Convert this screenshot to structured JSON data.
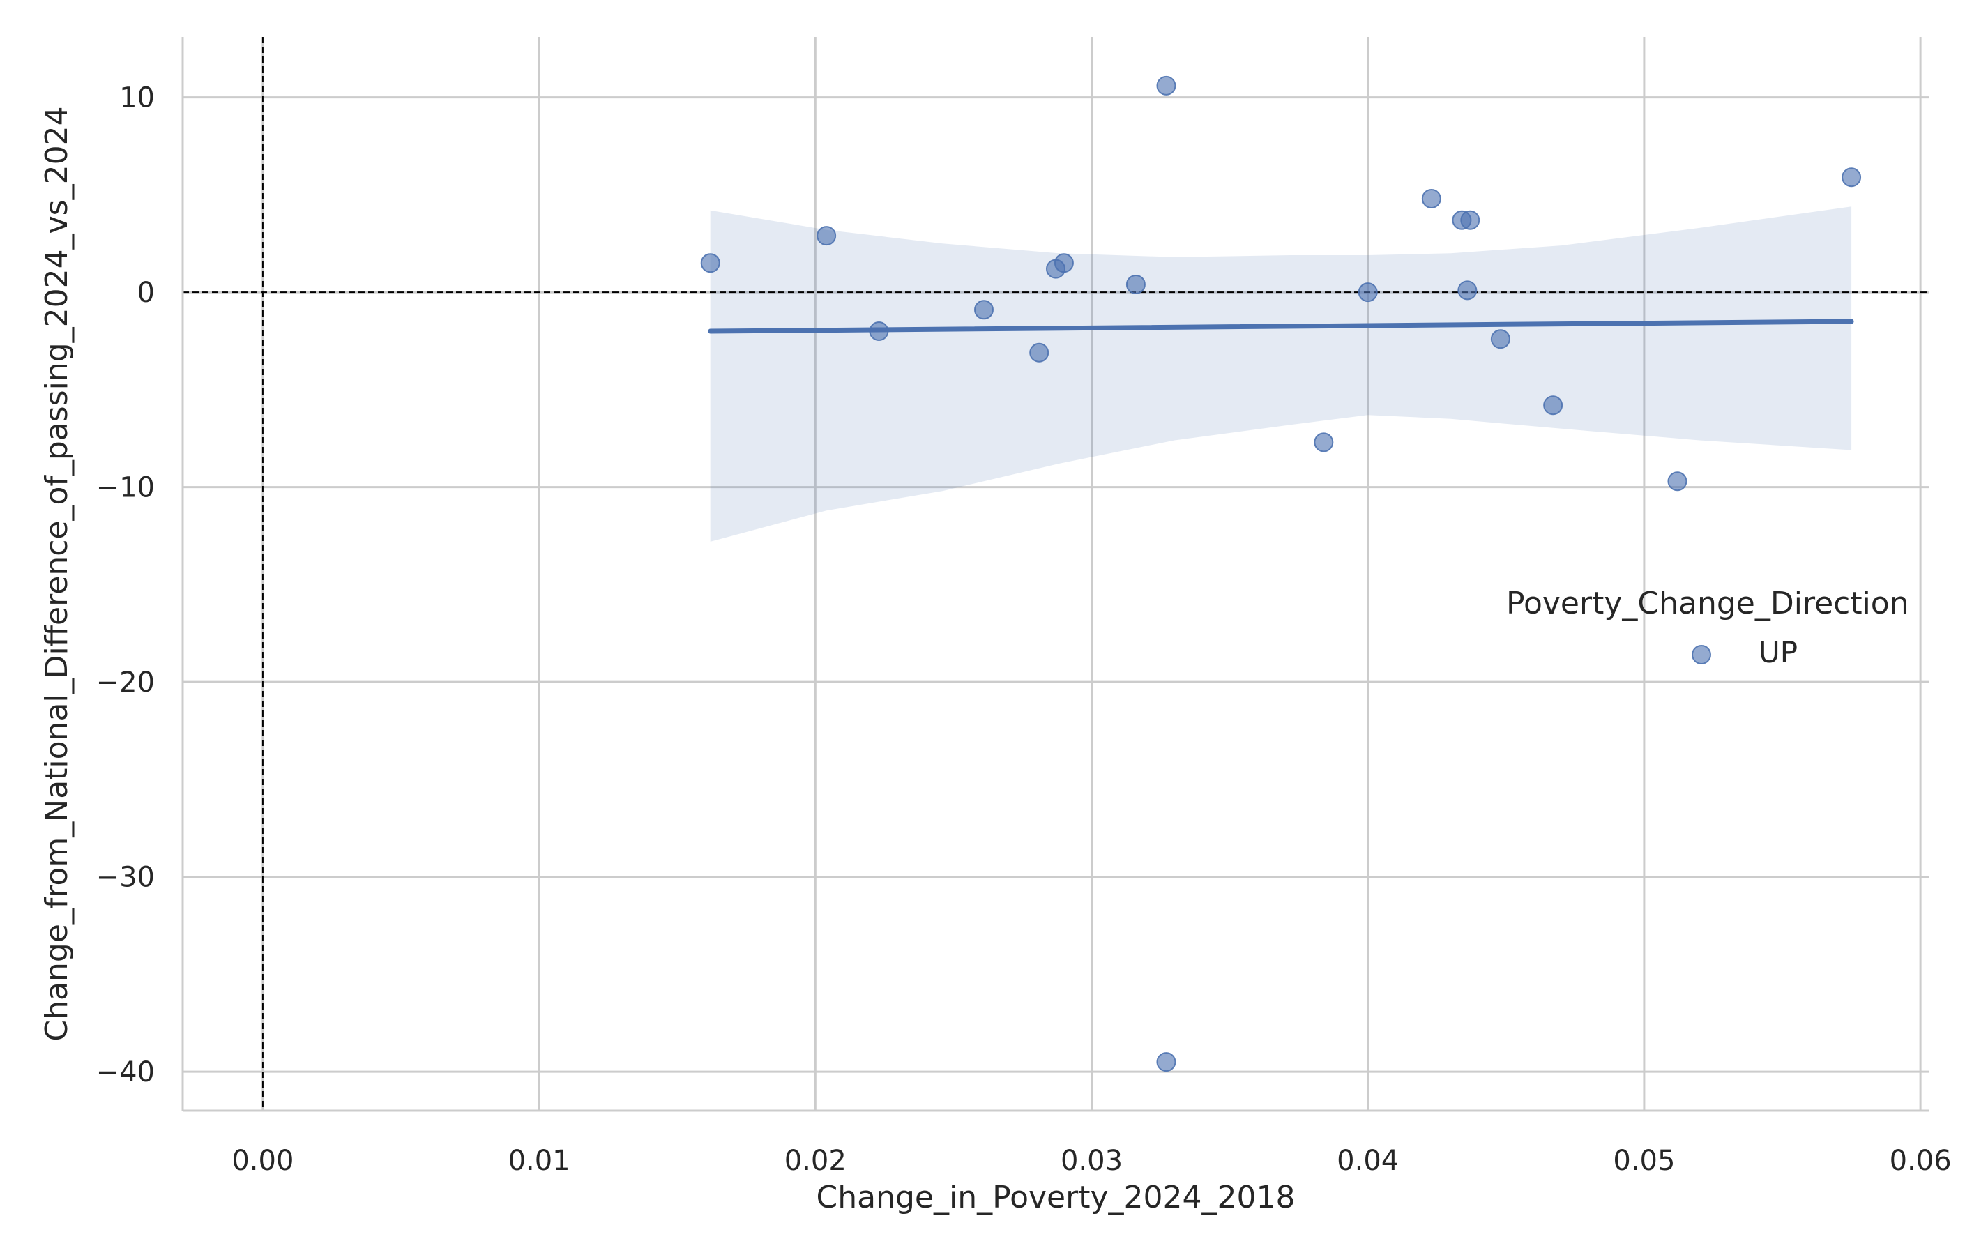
{
  "chart_data": {
    "type": "scatter",
    "title": "",
    "xlabel": "Change_in_Poverty_2024_2018",
    "ylabel": "Change_from_National_Difference_of_passing_2024_vs_2024",
    "xlim": [
      -0.0029,
      0.0603
    ],
    "ylim": [
      -42.0,
      13.1
    ],
    "x_ticks": [
      0.0,
      0.01,
      0.02,
      0.03,
      0.04,
      0.05,
      0.06
    ],
    "x_tick_labels": [
      "0.00",
      "0.01",
      "0.02",
      "0.03",
      "0.04",
      "0.05",
      "0.06"
    ],
    "y_ticks": [
      10,
      0,
      -10,
      -20,
      -30,
      -40
    ],
    "y_tick_labels": [
      "10",
      "0",
      "−10",
      "−20",
      "−30",
      "−40"
    ],
    "grid": true,
    "reference_lines": {
      "x": 0,
      "y": 0,
      "style": "dashed"
    },
    "legend": {
      "title": "Poverty_Change_Direction",
      "placement": "center-right"
    },
    "series": [
      {
        "name": "UP",
        "color": "#4c72b0",
        "points": [
          {
            "x": 0.0162,
            "y": 1.5
          },
          {
            "x": 0.0204,
            "y": 2.9
          },
          {
            "x": 0.0223,
            "y": -2.0
          },
          {
            "x": 0.0261,
            "y": -0.9
          },
          {
            "x": 0.0281,
            "y": -3.1
          },
          {
            "x": 0.0287,
            "y": 1.2
          },
          {
            "x": 0.029,
            "y": 1.5
          },
          {
            "x": 0.0316,
            "y": 0.4
          },
          {
            "x": 0.0327,
            "y": 10.6
          },
          {
            "x": 0.0327,
            "y": -39.5
          },
          {
            "x": 0.0384,
            "y": -7.7
          },
          {
            "x": 0.04,
            "y": 0.0
          },
          {
            "x": 0.0423,
            "y": 4.8
          },
          {
            "x": 0.0434,
            "y": 3.7
          },
          {
            "x": 0.0436,
            "y": 0.1
          },
          {
            "x": 0.0437,
            "y": 3.7
          },
          {
            "x": 0.0448,
            "y": -2.4
          },
          {
            "x": 0.0467,
            "y": -5.8
          },
          {
            "x": 0.0512,
            "y": -9.7
          },
          {
            "x": 0.0575,
            "y": 5.9
          }
        ]
      }
    ],
    "regression": {
      "color": "#4c72b0",
      "x_range": [
        0.0162,
        0.0575
      ],
      "y_range": [
        -2.0,
        -1.5
      ],
      "ci_band": [
        {
          "x": 0.0162,
          "upper": 4.2,
          "lower": -12.8
        },
        {
          "x": 0.0204,
          "upper": 3.2,
          "lower": -11.2
        },
        {
          "x": 0.0246,
          "upper": 2.5,
          "lower": -10.2
        },
        {
          "x": 0.0288,
          "upper": 2.0,
          "lower": -8.8
        },
        {
          "x": 0.033,
          "upper": 1.8,
          "lower": -7.6
        },
        {
          "x": 0.0372,
          "upper": 1.9,
          "lower": -6.8
        },
        {
          "x": 0.04,
          "upper": 1.9,
          "lower": -6.3
        },
        {
          "x": 0.043,
          "upper": 2.0,
          "lower": -6.5
        },
        {
          "x": 0.047,
          "upper": 2.4,
          "lower": -7.0
        },
        {
          "x": 0.052,
          "upper": 3.3,
          "lower": -7.6
        },
        {
          "x": 0.0575,
          "upper": 4.4,
          "lower": -8.1
        }
      ]
    }
  }
}
